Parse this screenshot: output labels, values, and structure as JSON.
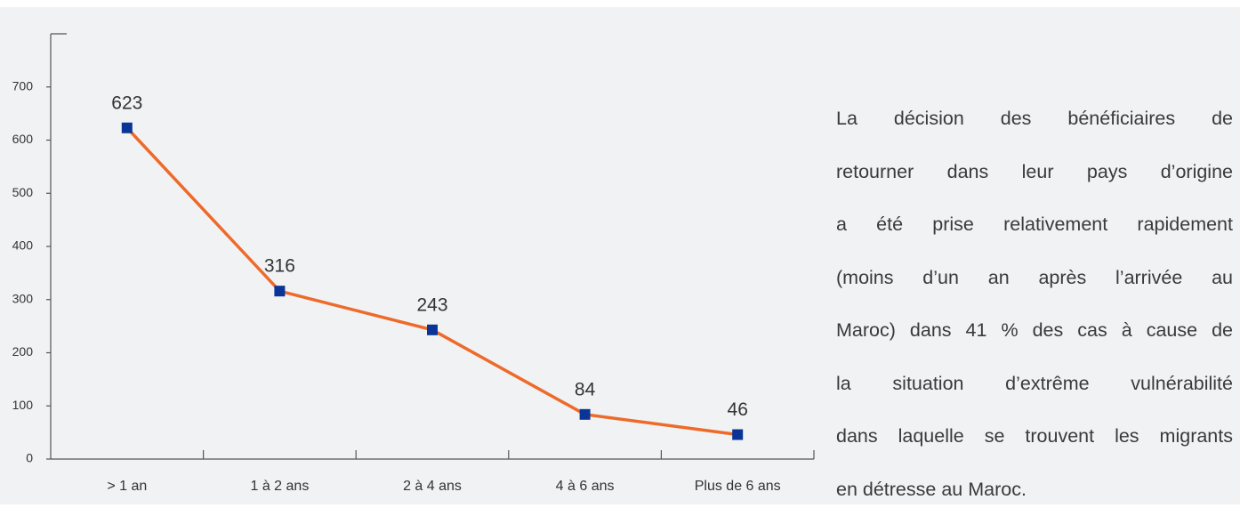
{
  "chart_data": {
    "type": "line",
    "categories": [
      "> 1 an",
      "1 à 2 ans",
      "2 à 4 ans",
      "4 à 6 ans",
      "Plus de 6 ans"
    ],
    "values": [
      623,
      316,
      243,
      84,
      46
    ],
    "color": "#ee6a2a",
    "marker_color": "#0a3596",
    "ylim": [
      0,
      800
    ],
    "yticks": [
      0,
      100,
      200,
      300,
      400,
      500,
      600,
      700
    ]
  },
  "text": {
    "lines": [
      "La décision des bénéficiaires de",
      "retourner dans leur pays d’origine",
      "a été prise relativement rapidement",
      "(moins d’un an après l’arrivée au",
      "Maroc) dans 41 % des cas à cause de",
      "la situation d’extrême vulnérabilité",
      "dans laquelle se trouvent les migrants",
      "en détresse au Maroc."
    ]
  }
}
